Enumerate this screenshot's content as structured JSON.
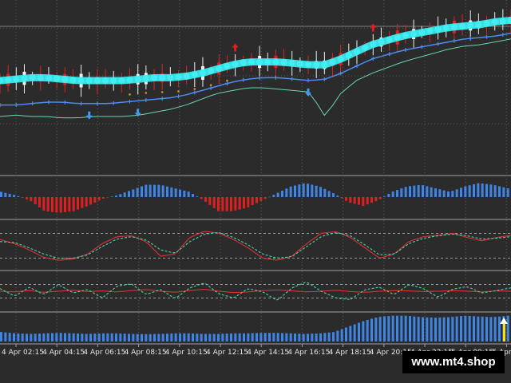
{
  "watermark": "www.mt4.shop",
  "colors": {
    "background": "#2b2b2b",
    "grid": "#5a5a5a",
    "separator": "#a0a0a0",
    "band": "#3ef0f4",
    "trend": "#4a8cf0",
    "stop_line": "#69d6b0",
    "dot_orange": "#f08a24",
    "bull_candle": "#f0f0f0",
    "bear_candle": "#e02020",
    "arrow_up": "#3d9df4",
    "arrow_down": "#e02020",
    "hist_pos": "#3d86e6",
    "hist_neg": "#e02020",
    "osc_fast": "#e03030",
    "osc_slow": "#40d6b0"
  },
  "chart_data": [
    {
      "type": "line",
      "panel": "price",
      "grid": true,
      "x_labels": [
        "4 Apr 02:15",
        "4 Apr 04:15",
        "4 Apr 06:15",
        "4 Apr 08:15",
        "4 Apr 10:15",
        "4 Apr 12:15",
        "4 Apr 14:15",
        "4 Apr 16:15",
        "4 Apr 18:15",
        "4 Apr 20:15",
        "4 Apr 22:15",
        "5 Apr 00:15",
        "5 Apr 02"
      ],
      "ylim": [
        0,
        100
      ],
      "series": [
        {
          "role": "band_center",
          "values": [
            55,
            56,
            57,
            57,
            56,
            55,
            55,
            55,
            55,
            56,
            57,
            57,
            58,
            60,
            63,
            66,
            68,
            68,
            68,
            67,
            66,
            66,
            70,
            75,
            80,
            83,
            86,
            88,
            90,
            92,
            93,
            94,
            96,
            97
          ]
        },
        {
          "role": "trend",
          "values": [
            38,
            38,
            39,
            40,
            40,
            39,
            39,
            39,
            40,
            41,
            42,
            43,
            45,
            48,
            51,
            54,
            56,
            57,
            57,
            56,
            55,
            56,
            60,
            65,
            70,
            73,
            76,
            78,
            80,
            82,
            84,
            85,
            86,
            88
          ]
        },
        {
          "role": "stop_line",
          "values": [
            30,
            31,
            30,
            30,
            29,
            29,
            30,
            30,
            30,
            31,
            33,
            35,
            38,
            42,
            46,
            48,
            50,
            50,
            49,
            48,
            47,
            30,
            46,
            55,
            60,
            64,
            68,
            71,
            74,
            77,
            79,
            80,
            82,
            84
          ]
        }
      ],
      "up_arrows_at": [
        6,
        9,
        20
      ],
      "down_arrows_at": [
        15,
        24
      ]
    },
    {
      "type": "bar",
      "panel": "histogram",
      "values": [
        0.3,
        0.1,
        -0.2,
        -0.8,
        -0.9,
        -0.8,
        -0.5,
        -0.1,
        0.1,
        0.4,
        0.7,
        0.7,
        0.5,
        0.3,
        -0.2,
        -0.8,
        -0.8,
        -0.6,
        -0.2,
        0.2,
        0.6,
        0.8,
        0.6,
        0.2,
        -0.3,
        -0.5,
        -0.2,
        0.3,
        0.6,
        0.7,
        0.5,
        0.3,
        0.6,
        0.8,
        0.7,
        0.5
      ]
    },
    {
      "type": "line",
      "panel": "oscillator",
      "ylim": [
        0,
        100
      ],
      "series": [
        {
          "role": "fast",
          "values": [
            65,
            55,
            40,
            22,
            15,
            18,
            30,
            55,
            72,
            74,
            60,
            25,
            30,
            70,
            85,
            80,
            65,
            45,
            20,
            15,
            25,
            55,
            80,
            84,
            70,
            45,
            20,
            30,
            60,
            72,
            75,
            80,
            70,
            62,
            70,
            75
          ]
        },
        {
          "role": "slow",
          "values": [
            60,
            58,
            45,
            30,
            20,
            20,
            28,
            48,
            66,
            72,
            64,
            40,
            32,
            60,
            78,
            82,
            70,
            52,
            30,
            20,
            24,
            48,
            72,
            82,
            74,
            52,
            28,
            30,
            55,
            68,
            74,
            78,
            74,
            66,
            68,
            72
          ]
        }
      ]
    },
    {
      "type": "line",
      "panel": "oscillator_2",
      "ylim": [
        0,
        100
      ],
      "series": [
        {
          "role": "fast",
          "values": [
            50,
            48,
            52,
            47,
            50,
            53,
            49,
            51,
            48,
            52,
            55,
            50,
            47,
            52,
            56,
            50,
            46,
            48,
            52,
            54,
            51,
            48,
            50,
            53,
            49,
            47,
            50,
            52,
            51,
            49,
            50,
            52,
            50,
            48,
            51,
            50
          ]
        },
        {
          "role": "slow",
          "values": [
            58,
            35,
            62,
            40,
            70,
            45,
            55,
            30,
            65,
            72,
            40,
            55,
            28,
            60,
            75,
            42,
            30,
            58,
            48,
            22,
            60,
            78,
            50,
            30,
            25,
            55,
            62,
            40,
            70,
            58,
            32,
            56,
            64,
            45,
            52,
            60
          ]
        }
      ]
    },
    {
      "type": "bar",
      "panel": "volume",
      "values": [
        0.35,
        0.3,
        0.28,
        0.3,
        0.32,
        0.3,
        0.28,
        0.3,
        0.3,
        0.28,
        0.27,
        0.28,
        0.3,
        0.3,
        0.28,
        0.28,
        0.3,
        0.3,
        0.32,
        0.32,
        0.3,
        0.28,
        0.3,
        0.35,
        0.55,
        0.75,
        0.9,
        0.95,
        0.95,
        0.9,
        0.88,
        0.9,
        0.95,
        0.92,
        0.9,
        0.95
      ]
    }
  ]
}
